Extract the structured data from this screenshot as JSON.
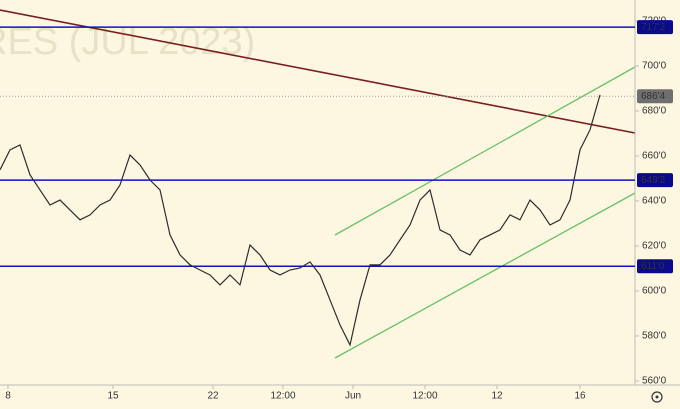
{
  "chart_data": {
    "type": "line",
    "watermark": "RES (JUL 2023)",
    "x": [
      0,
      1,
      2,
      3,
      4,
      5,
      6,
      7,
      8,
      9,
      10,
      11,
      12,
      13,
      14,
      15,
      16,
      17,
      18,
      19,
      20,
      21,
      22,
      23,
      24,
      25,
      26,
      27,
      28,
      29,
      30,
      31,
      32,
      33,
      34,
      35,
      36,
      37,
      38,
      39,
      40,
      41,
      42,
      43,
      44,
      45,
      46,
      47,
      48,
      49,
      50,
      51,
      52,
      53,
      54,
      55,
      56,
      57,
      58,
      59,
      60
    ],
    "series": [
      {
        "color": "#2d2d2d",
        "values": [
          653.8,
          662.7,
          664.9,
          651.6,
          644.9,
          638.2,
          640.4,
          636,
          631.6,
          633.8,
          638.2,
          640.4,
          647.1,
          660.4,
          656,
          649.3,
          644.9,
          624.9,
          616,
          611.6,
          609.3,
          607.1,
          602.7,
          607.1,
          602.7,
          620.4,
          616,
          609.3,
          607.1,
          609.3,
          610.2,
          612.9,
          607.1,
          596,
          584.9,
          576,
          596,
          611.6,
          611.6,
          616,
          622.7,
          629.3,
          640.4,
          644.9,
          627.1,
          624.9,
          618.2,
          616,
          622.7,
          624.9,
          627.1,
          633.8,
          631.6,
          640.4,
          636,
          629.3,
          631.6,
          640.4,
          662.7,
          671.6,
          687.1
        ]
      }
    ],
    "xlim": [
      0,
      63.5
    ],
    "ylim": [
      558.2,
      729.3
    ],
    "xticks": [
      {
        "value": 0.8,
        "label": "8"
      },
      {
        "value": 11.3,
        "label": "15"
      },
      {
        "value": 21.3,
        "label": "22"
      },
      {
        "value": 28.3,
        "label": "12:00"
      },
      {
        "value": 35.3,
        "label": "Jun"
      },
      {
        "value": 42.5,
        "label": "12:00"
      },
      {
        "value": 49.7,
        "label": "12"
      },
      {
        "value": 58,
        "label": "16"
      }
    ],
    "yticks": [
      {
        "value": 720,
        "label": "720'0"
      },
      {
        "value": 700,
        "label": "700'0"
      },
      {
        "value": 680,
        "label": "680'0"
      },
      {
        "value": 660,
        "label": "660'0"
      },
      {
        "value": 640,
        "label": "640'0"
      },
      {
        "value": 620,
        "label": "620'0"
      },
      {
        "value": 600,
        "label": "600'0"
      },
      {
        "value": 580,
        "label": "580'0"
      },
      {
        "value": 560,
        "label": "560'0"
      }
    ],
    "levels": [
      {
        "value": 717.25,
        "label": "717'2"
      },
      {
        "value": 649.25,
        "label": "649'2"
      },
      {
        "value": 611,
        "label": "611'0"
      }
    ],
    "level_color": "#1010c8",
    "last_price": {
      "value": 686.5,
      "label": "686'4"
    }
  }
}
